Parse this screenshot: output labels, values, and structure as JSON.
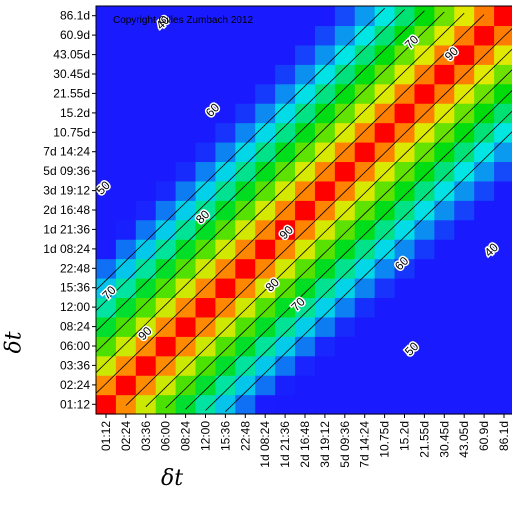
{
  "chart_data": {
    "type": "heatmap",
    "title": "",
    "xlabel": "δt",
    "ylabel": "δt",
    "copyright": "Copyright Gilles Zumbach 2012",
    "ticks": [
      "01:12",
      "02:24",
      "03:36",
      "06:00",
      "08:24",
      "12:00",
      "15:36",
      "22:48",
      "1d 08:24",
      "1d 21:36",
      "2d 16:48",
      "3d 19:12",
      "5d 09:36",
      "7d 14:24",
      "10.75d",
      "15.2d",
      "21.55d",
      "30.45d",
      "43.05d",
      "60.9d",
      "86.1d"
    ],
    "contour_levels": [
      40,
      50,
      60,
      70,
      80,
      90
    ],
    "contour_labels": [
      {
        "text": "40",
        "x": 3.5,
        "y": 20.0
      },
      {
        "text": "70",
        "x": 16.0,
        "y": 19.0
      },
      {
        "text": "90",
        "x": 18.0,
        "y": 18.4
      },
      {
        "text": "60",
        "x": 6.0,
        "y": 15.5
      },
      {
        "text": "50",
        "x": 0.5,
        "y": 11.5
      },
      {
        "text": "80",
        "x": 5.5,
        "y": 10.0
      },
      {
        "text": "90",
        "x": 9.7,
        "y": 9.2
      },
      {
        "text": "70",
        "x": 0.8,
        "y": 6.1
      },
      {
        "text": "80",
        "x": 9.0,
        "y": 6.5
      },
      {
        "text": "70",
        "x": 10.3,
        "y": 5.5
      },
      {
        "text": "60",
        "x": 15.5,
        "y": 7.6
      },
      {
        "text": "40",
        "x": 20.0,
        "y": 8.3
      },
      {
        "text": "90",
        "x": 2.6,
        "y": 4.0
      },
      {
        "text": "50",
        "x": 16.0,
        "y": 3.2
      }
    ],
    "color_scale": {
      "min": 25,
      "max": 100,
      "low_color": "#1a1aff",
      "high_color": "#ff0000"
    },
    "value_model": "value ≈ 100 − 9.4·|i−j| with 0.35 per-step shrink along the diagonal"
  }
}
